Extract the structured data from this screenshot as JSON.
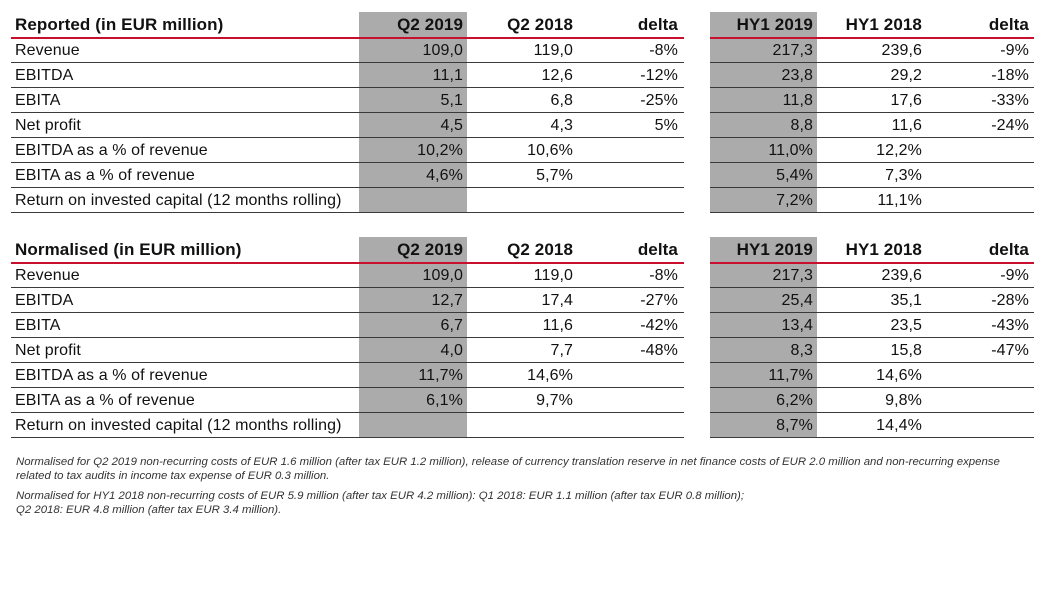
{
  "reported": {
    "title": "Reported (in EUR million)",
    "columns": [
      "Q2 2019",
      "Q2 2018",
      "delta",
      "HY1 2019",
      "HY1 2018",
      "delta"
    ],
    "rows": [
      {
        "label": "Revenue",
        "values": [
          "109,0",
          "119,0",
          "-8%",
          "217,3",
          "239,6",
          "-9%"
        ]
      },
      {
        "label": "EBITDA",
        "values": [
          "11,1",
          "12,6",
          "-12%",
          "23,8",
          "29,2",
          "-18%"
        ]
      },
      {
        "label": "EBITA",
        "values": [
          "5,1",
          "6,8",
          "-25%",
          "11,8",
          "17,6",
          "-33%"
        ]
      },
      {
        "label": "Net profit",
        "values": [
          "4,5",
          "4,3",
          "5%",
          "8,8",
          "11,6",
          "-24%"
        ]
      },
      {
        "label": "EBITDA as a % of revenue",
        "values": [
          "10,2%",
          "10,6%",
          "",
          "11,0%",
          "12,2%",
          ""
        ]
      },
      {
        "label": "EBITA as a % of revenue",
        "values": [
          "4,6%",
          "5,7%",
          "",
          "5,4%",
          "7,3%",
          ""
        ]
      },
      {
        "label": "Return on invested capital (12 months rolling)",
        "values": [
          "",
          "",
          "",
          "7,2%",
          "11,1%",
          ""
        ]
      }
    ]
  },
  "normalised": {
    "title": "Normalised (in EUR million)",
    "columns": [
      "Q2 2019",
      "Q2 2018",
      "delta",
      "HY1 2019",
      "HY1 2018",
      "delta"
    ],
    "rows": [
      {
        "label": "Revenue",
        "values": [
          "109,0",
          "119,0",
          "-8%",
          "217,3",
          "239,6",
          "-9%"
        ]
      },
      {
        "label": "EBITDA",
        "values": [
          "12,7",
          "17,4",
          "-27%",
          "25,4",
          "35,1",
          "-28%"
        ]
      },
      {
        "label": "EBITA",
        "values": [
          "6,7",
          "11,6",
          "-42%",
          "13,4",
          "23,5",
          "-43%"
        ]
      },
      {
        "label": "Net profit",
        "values": [
          "4,0",
          "7,7",
          "-48%",
          "8,3",
          "15,8",
          "-47%"
        ]
      },
      {
        "label": "EBITDA as a % of revenue",
        "values": [
          "11,7%",
          "14,6%",
          "",
          "11,7%",
          "14,6%",
          ""
        ]
      },
      {
        "label": "EBITA as a % of revenue",
        "values": [
          "6,1%",
          "9,7%",
          "",
          "6,2%",
          "9,8%",
          ""
        ]
      },
      {
        "label": "Return on invested capital (12 months rolling)",
        "values": [
          "",
          "",
          "",
          "8,7%",
          "14,4%",
          ""
        ]
      }
    ]
  },
  "notes": [
    "Normalised for Q2 2019 non-recurring costs of EUR 1.6 million (after tax EUR 1.2 million), release of currency translation reserve in net finance costs of EUR 2.0 million and non-recurring expense\nrelated to tax audits in income tax expense of EUR 0.3 million.",
    "Normalised for HY1 2018 non-recurring costs of EUR 5.9 million (after tax EUR 4.2 million): Q1 2018: EUR 1.1 million (after tax EUR 0.8 million);\nQ2 2018: EUR 4.8 million (after tax EUR 3.4 million)."
  ],
  "colors": {
    "highlight": "#ababab",
    "accent": "#c8102e",
    "rule": "#3a3a3a"
  }
}
